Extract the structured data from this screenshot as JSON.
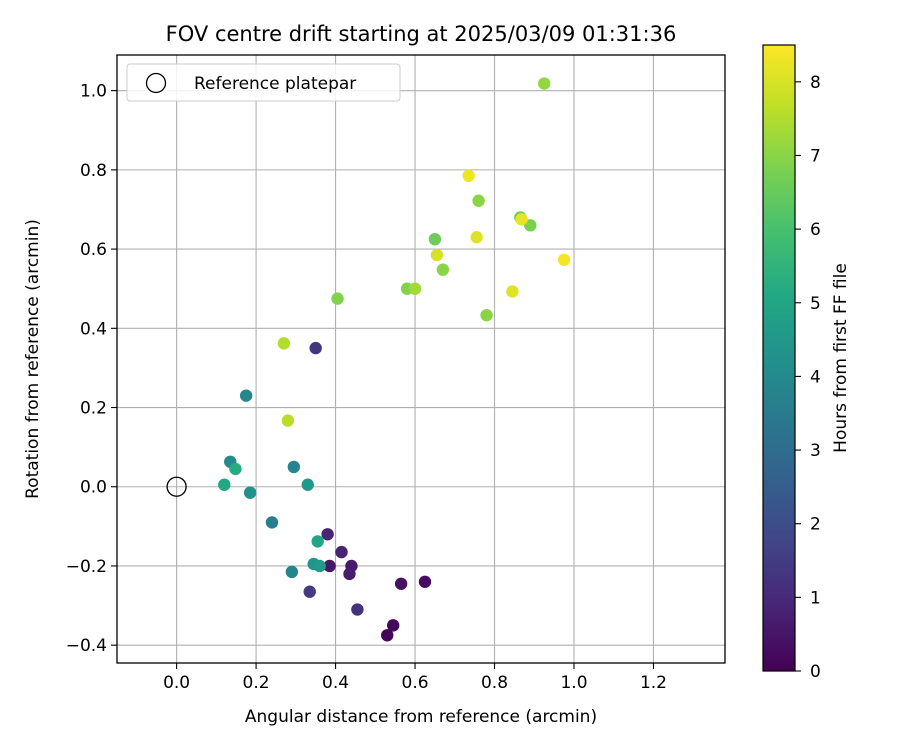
{
  "chart_data": {
    "type": "scatter",
    "title": "FOV centre drift starting at 2025/03/09 01:31:36",
    "xlabel": "Angular distance from reference (arcmin)",
    "ylabel": "Rotation from reference (arcmin)",
    "xlim": [
      -0.15,
      1.38
    ],
    "ylim": [
      -0.445,
      1.09
    ],
    "xticks": [
      0.0,
      0.2,
      0.4,
      0.6,
      0.8,
      1.0,
      1.2
    ],
    "xtick_labels": [
      "0.0",
      "0.2",
      "0.4",
      "0.6",
      "0.8",
      "1.0",
      "1.2"
    ],
    "yticks": [
      -0.4,
      -0.2,
      0.0,
      0.2,
      0.4,
      0.6,
      0.8,
      1.0
    ],
    "ytick_labels": [
      "−0.4",
      "−0.2",
      "0.0",
      "0.2",
      "0.4",
      "0.6",
      "0.8",
      "1.0"
    ],
    "grid": true,
    "legend_position": "top-left",
    "legend_label": "Reference platepar",
    "reference_point": {
      "x": 0.0,
      "y": 0.0
    },
    "colorbar": {
      "label": "Hours from first FF file",
      "range": [
        0,
        8.5
      ],
      "ticks": [
        0,
        1,
        2,
        3,
        4,
        5,
        6,
        7,
        8
      ],
      "tick_labels": [
        "0",
        "1",
        "2",
        "3",
        "4",
        "5",
        "6",
        "7",
        "8"
      ],
      "colormap": "viridis"
    },
    "points": [
      {
        "x": 0.53,
        "y": -0.375,
        "h": 0.1
      },
      {
        "x": 0.545,
        "y": -0.35,
        "h": 0.2
      },
      {
        "x": 0.625,
        "y": -0.24,
        "h": 0.3
      },
      {
        "x": 0.565,
        "y": -0.245,
        "h": 0.4
      },
      {
        "x": 0.385,
        "y": -0.2,
        "h": 0.5
      },
      {
        "x": 0.44,
        "y": -0.2,
        "h": 0.6
      },
      {
        "x": 0.435,
        "y": -0.22,
        "h": 0.7
      },
      {
        "x": 0.415,
        "y": -0.165,
        "h": 0.8
      },
      {
        "x": 0.38,
        "y": -0.12,
        "h": 0.9
      },
      {
        "x": 0.455,
        "y": -0.31,
        "h": 1.2
      },
      {
        "x": 0.35,
        "y": 0.35,
        "h": 1.3
      },
      {
        "x": 0.335,
        "y": -0.265,
        "h": 1.5
      },
      {
        "x": 0.24,
        "y": -0.09,
        "h": 3.6
      },
      {
        "x": 0.29,
        "y": -0.215,
        "h": 3.8
      },
      {
        "x": 0.295,
        "y": 0.05,
        "h": 3.8
      },
      {
        "x": 0.175,
        "y": 0.23,
        "h": 3.9
      },
      {
        "x": 0.135,
        "y": 0.063,
        "h": 4.0
      },
      {
        "x": 0.185,
        "y": -0.015,
        "h": 4.2
      },
      {
        "x": 0.33,
        "y": 0.005,
        "h": 4.5
      },
      {
        "x": 0.345,
        "y": -0.195,
        "h": 4.4
      },
      {
        "x": 0.36,
        "y": -0.2,
        "h": 4.6
      },
      {
        "x": 0.355,
        "y": -0.138,
        "h": 5.0
      },
      {
        "x": 0.12,
        "y": 0.005,
        "h": 5.1
      },
      {
        "x": 0.148,
        "y": 0.045,
        "h": 5.2
      },
      {
        "x": 0.65,
        "y": 0.625,
        "h": 6.6
      },
      {
        "x": 0.865,
        "y": 0.68,
        "h": 6.6
      },
      {
        "x": 0.89,
        "y": 0.66,
        "h": 6.8
      },
      {
        "x": 0.405,
        "y": 0.475,
        "h": 6.9
      },
      {
        "x": 0.58,
        "y": 0.5,
        "h": 6.9
      },
      {
        "x": 0.67,
        "y": 0.548,
        "h": 7.0
      },
      {
        "x": 0.76,
        "y": 0.722,
        "h": 7.0
      },
      {
        "x": 0.78,
        "y": 0.433,
        "h": 7.0
      },
      {
        "x": 0.925,
        "y": 1.018,
        "h": 7.1
      },
      {
        "x": 0.6,
        "y": 0.5,
        "h": 7.3
      },
      {
        "x": 0.27,
        "y": 0.362,
        "h": 7.5
      },
      {
        "x": 0.28,
        "y": 0.167,
        "h": 7.6
      },
      {
        "x": 0.655,
        "y": 0.585,
        "h": 8.0
      },
      {
        "x": 0.755,
        "y": 0.63,
        "h": 8.1
      },
      {
        "x": 0.845,
        "y": 0.493,
        "h": 8.1
      },
      {
        "x": 0.868,
        "y": 0.675,
        "h": 8.2
      },
      {
        "x": 0.735,
        "y": 0.785,
        "h": 8.3
      },
      {
        "x": 0.975,
        "y": 0.573,
        "h": 8.4
      }
    ]
  }
}
